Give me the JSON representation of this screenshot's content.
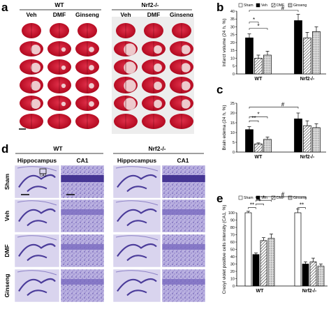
{
  "figure": {
    "panels": {
      "a": "a",
      "b": "b",
      "c": "c",
      "d": "d",
      "e": "e"
    },
    "panel_a": {
      "genotypes": [
        "WT",
        "Nrf2-/-"
      ],
      "groups": [
        "Veh",
        "DMF",
        "Ginseng",
        "Veh",
        "DMF",
        "Ginseng"
      ],
      "rows": 6
    },
    "panel_d": {
      "genotypes": [
        "WT",
        "Nrf2-/-"
      ],
      "column_headers": [
        "Hippocampus",
        "CA1",
        "Hippocampus",
        "CA1"
      ],
      "row_labels": [
        "Sham",
        "Veh",
        "DMF",
        "Ginseng"
      ],
      "inset_label": "CA1"
    },
    "colors": {
      "veh": "#000000",
      "sham": "#ffffff",
      "tissue_red": "#c8102e",
      "nissl": "#8b7fc8"
    }
  },
  "legend": [
    "Sham",
    "Veh",
    "DMF",
    "Ginseng"
  ],
  "chart_data": [
    {
      "panel": "b",
      "type": "bar",
      "ylabel": "Infarct volume (24 h, %)",
      "ylim": [
        0,
        40
      ],
      "yticks": [
        0,
        5,
        10,
        15,
        20,
        25,
        30,
        35,
        40
      ],
      "categories": [
        "WT",
        "Nrf2-/-"
      ],
      "series": [
        {
          "name": "Veh",
          "values": [
            23,
            34
          ],
          "err": [
            2.5,
            4
          ]
        },
        {
          "name": "DMF",
          "values": [
            10,
            23
          ],
          "err": [
            2,
            3.5
          ]
        },
        {
          "name": "Ginseng",
          "values": [
            12,
            27
          ],
          "err": [
            2.5,
            3
          ]
        }
      ],
      "significance": [
        "*",
        "*",
        "#"
      ]
    },
    {
      "panel": "c",
      "type": "bar",
      "ylabel": "Brain edema (24 h, %)",
      "ylim": [
        0,
        25
      ],
      "yticks": [
        0,
        5,
        10,
        15,
        20,
        25
      ],
      "categories": [
        "WT",
        "Nrf2-/-"
      ],
      "series": [
        {
          "name": "Veh",
          "values": [
            11.5,
            17
          ],
          "err": [
            1.5,
            3
          ]
        },
        {
          "name": "DMF",
          "values": [
            4.2,
            13.5
          ],
          "err": [
            0.5,
            2.5
          ]
        },
        {
          "name": "Ginseng",
          "values": [
            6.5,
            12.5
          ],
          "err": [
            1.2,
            2
          ]
        }
      ],
      "significance": [
        "**",
        "*",
        "#"
      ]
    },
    {
      "panel": "e",
      "type": "bar",
      "ylabel": "Cresyl violet positive cells intensity (CA1, %)",
      "ylim": [
        0,
        100
      ],
      "yticks": [
        0,
        10,
        20,
        30,
        40,
        50,
        60,
        70,
        80,
        90,
        100
      ],
      "categories": [
        "WT",
        "Nrf2-/-"
      ],
      "series": [
        {
          "name": "Sham",
          "values": [
            100,
            100
          ],
          "err": [
            2,
            5
          ]
        },
        {
          "name": "Veh",
          "values": [
            43,
            30
          ],
          "err": [
            2,
            3
          ]
        },
        {
          "name": "DMF",
          "values": [
            62,
            33
          ],
          "err": [
            4,
            5
          ]
        },
        {
          "name": "Ginseng",
          "values": [
            65,
            27
          ],
          "err": [
            6,
            3
          ]
        }
      ],
      "significance": [
        "**",
        "*",
        "*",
        "#",
        "**"
      ]
    }
  ]
}
